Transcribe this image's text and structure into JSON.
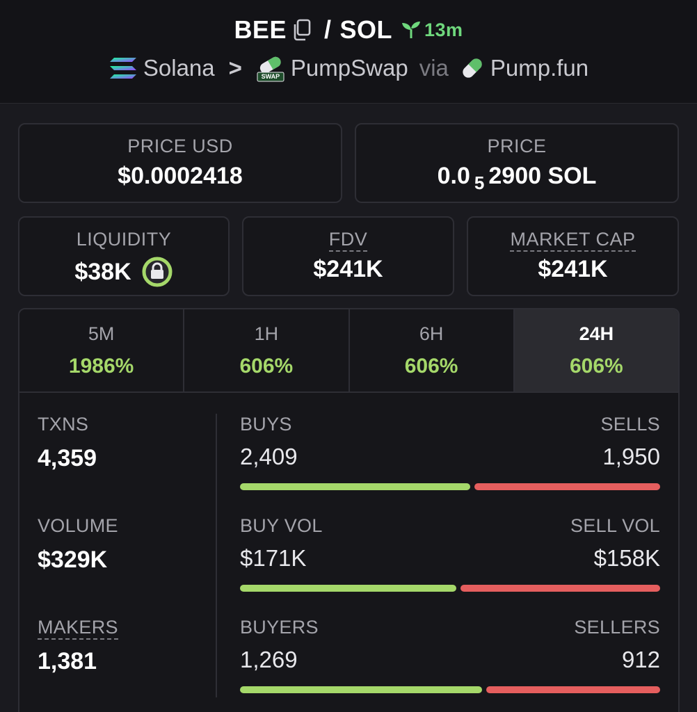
{
  "header": {
    "token": "BEE",
    "slash": "/",
    "quote": "SOL",
    "age": "13m",
    "chain": "Solana",
    "chevron": ">",
    "dex": "PumpSwap",
    "via": "via",
    "launchpad": "Pump.fun",
    "dex_badge": "SWAP",
    "icons": [
      "copy-icon",
      "sprout-icon",
      "solana-logo-icon",
      "pumpswap-logo-icon",
      "pill-icon"
    ]
  },
  "prices": {
    "price_usd_label": "PRICE USD",
    "price_usd_value": "$0.0002418",
    "price_label": "PRICE",
    "price_prefix": "0.0",
    "price_sub": "5",
    "price_suffix": "2900 SOL"
  },
  "metrics": {
    "liquidity_label": "LIQUIDITY",
    "liquidity_value": "$38K",
    "fdv_label": "FDV",
    "fdv_value": "$241K",
    "mcap_label": "MARKET CAP",
    "mcap_value": "$241K"
  },
  "tabs": [
    {
      "label": "5M",
      "value": "1986%"
    },
    {
      "label": "1H",
      "value": "606%"
    },
    {
      "label": "6H",
      "value": "606%"
    },
    {
      "label": "24H",
      "value": "606%"
    }
  ],
  "active_tab": "24H",
  "left_stats": [
    {
      "label": "TXNS",
      "value": "4,359"
    },
    {
      "label": "VOLUME",
      "value": "$329K"
    },
    {
      "label": "MAKERS",
      "value": "1,381"
    }
  ],
  "ratios": [
    {
      "left_label": "BUYS",
      "left_value": "2,409",
      "right_label": "SELLS",
      "right_value": "1,950",
      "buy_fraction": 0.553
    },
    {
      "left_label": "BUY VOL",
      "left_value": "$171K",
      "right_label": "SELL VOL",
      "right_value": "$158K",
      "buy_fraction": 0.52
    },
    {
      "left_label": "BUYERS",
      "left_value": "1,269",
      "right_label": "SELLERS",
      "right_value": "912",
      "buy_fraction": 0.582
    }
  ],
  "colors": {
    "positive": "#a5d86a",
    "negative": "#e55e5e",
    "age_green": "#6fd87d",
    "lock_ring": "#a5d86a"
  }
}
